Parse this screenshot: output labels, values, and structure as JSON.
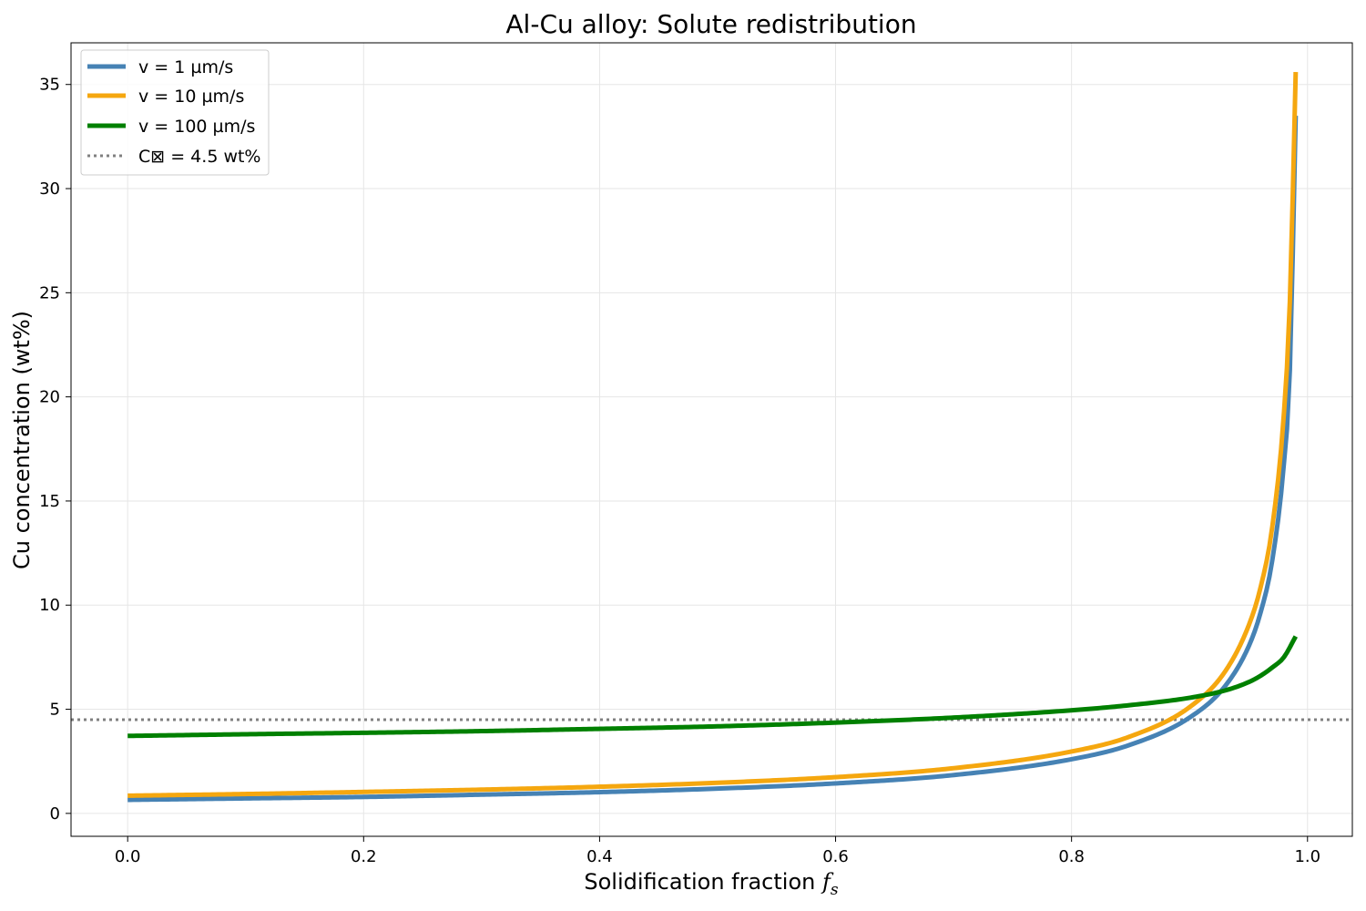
{
  "chart_data": {
    "type": "line",
    "title": "Al-Cu alloy: Solute redistribution",
    "xlabel": "Solidification fraction",
    "xlabel_symbol": "f",
    "xlabel_subscript": "s",
    "ylabel": "Cu concentration (wt%)",
    "xlim": [
      -0.048,
      1.038
    ],
    "ylim": [
      -1.1,
      37.0
    ],
    "x_ticks": [
      0.0,
      0.2,
      0.4,
      0.6,
      0.8,
      1.0
    ],
    "x_tick_labels": [
      "0.0",
      "0.2",
      "0.4",
      "0.6",
      "0.8",
      "1.0"
    ],
    "y_ticks": [
      0,
      5,
      10,
      15,
      20,
      25,
      30,
      35
    ],
    "y_tick_labels": [
      "0",
      "5",
      "10",
      "15",
      "20",
      "25",
      "30",
      "35"
    ],
    "grid": true,
    "legend_position": "top-left",
    "series": [
      {
        "name": "v = 1 µm/s",
        "color": "#4682b4",
        "x": [
          0.0,
          0.1,
          0.2,
          0.3,
          0.4,
          0.5,
          0.6,
          0.7,
          0.8,
          0.85,
          0.9,
          0.93,
          0.95,
          0.96,
          0.97,
          0.98,
          0.985,
          0.99
        ],
        "y": [
          0.65,
          0.72,
          0.79,
          0.9,
          1.02,
          1.19,
          1.44,
          1.84,
          2.6,
          3.3,
          4.6,
          6.1,
          8.0,
          9.6,
          12.1,
          16.8,
          21.2,
          33.5
        ]
      },
      {
        "name": "v = 10 µm/s",
        "color": "#f5a70f",
        "x": [
          0.0,
          0.1,
          0.2,
          0.3,
          0.4,
          0.5,
          0.6,
          0.7,
          0.8,
          0.85,
          0.9,
          0.93,
          0.95,
          0.96,
          0.97,
          0.98,
          0.985,
          0.99
        ],
        "y": [
          0.85,
          0.93,
          1.03,
          1.14,
          1.28,
          1.47,
          1.74,
          2.17,
          2.97,
          3.7,
          5.1,
          6.8,
          9.0,
          10.8,
          13.7,
          19.2,
          24.5,
          35.6
        ]
      },
      {
        "name": "v = 100 µm/s",
        "color": "#008000",
        "x": [
          0.0,
          0.1,
          0.2,
          0.3,
          0.4,
          0.5,
          0.6,
          0.7,
          0.8,
          0.85,
          0.9,
          0.93,
          0.95,
          0.96,
          0.97,
          0.98,
          0.99
        ],
        "y": [
          3.72,
          3.8,
          3.87,
          3.95,
          4.06,
          4.18,
          4.36,
          4.6,
          4.95,
          5.2,
          5.55,
          5.9,
          6.3,
          6.6,
          7.0,
          7.5,
          8.5
        ]
      }
    ],
    "reference_line": {
      "label": "C⊠ = 4.5 wt%",
      "value": 4.5,
      "color": "#808080"
    }
  }
}
